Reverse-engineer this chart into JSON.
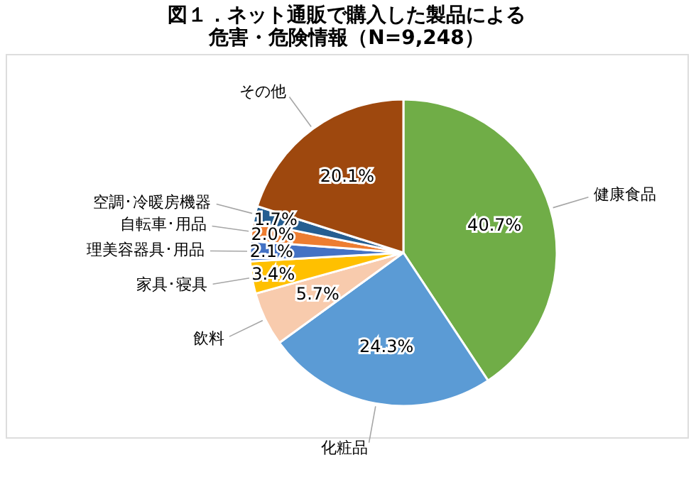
{
  "chart_data": {
    "type": "pie",
    "title": [
      "図１．ネット通販で購入した製品による",
      "危害・危険情報（N=9,248）"
    ],
    "categories": [
      "健康食品",
      "化粧品",
      "飲料",
      "家具･寝具",
      "理美容器具･用品",
      "自転車･用品",
      "空調･冷暖房機器",
      "その他"
    ],
    "values": [
      40.7,
      24.3,
      5.7,
      3.4,
      2.1,
      2.0,
      1.7,
      20.1
    ],
    "colors": [
      "#70ad47",
      "#5b9bd5",
      "#f8cbad",
      "#ffc000",
      "#4472c4",
      "#ed7d31",
      "#255e91",
      "#9e480e"
    ],
    "value_labels": [
      "40.7%",
      "24.3%",
      "5.7%",
      "3.4%",
      "2.1%",
      "2.0%",
      "1.7%",
      "20.1%"
    ],
    "legend": false
  }
}
